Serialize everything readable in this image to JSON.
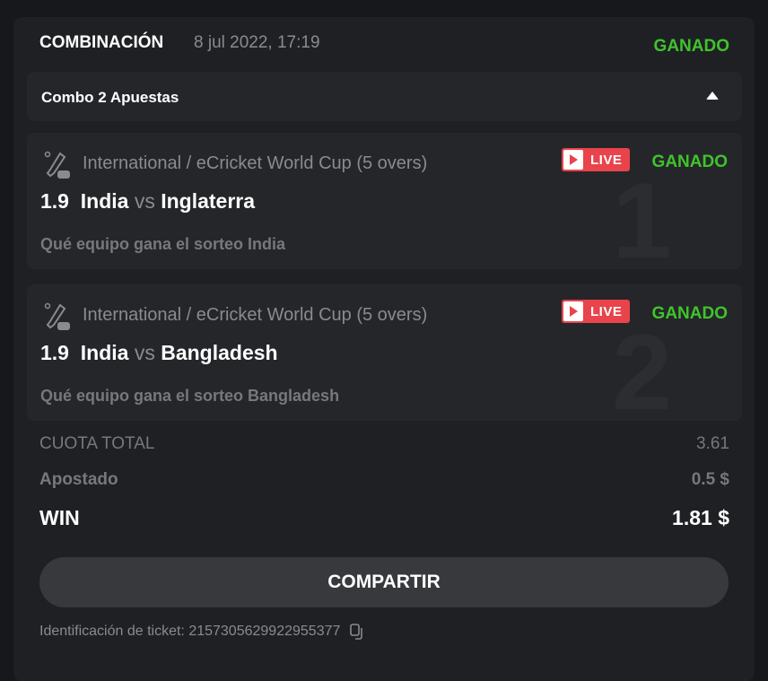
{
  "header": {
    "title": "COMBINACIÓN",
    "date": "8 jul 2022, 17:19",
    "status": "GANADO"
  },
  "combo": {
    "label": "Combo 2 Apuestas",
    "toggle_icon": "caret-up-icon"
  },
  "bets": [
    {
      "league": "International / eCricket World Cup (5 overs)",
      "live": "LIVE",
      "status": "GANADO",
      "odds": "1.9",
      "home": "India",
      "vs": "vs",
      "away": "Inglaterra",
      "selection": "Qué equipo gana el sorteo India",
      "index": "1"
    },
    {
      "league": "International / eCricket World Cup (5 overs)",
      "live": "LIVE",
      "status": "GANADO",
      "odds": "1.9",
      "home": "India",
      "vs": "vs",
      "away": "Bangladesh",
      "selection": "Qué equipo gana el sorteo Bangladesh",
      "index": "2"
    }
  ],
  "summary": {
    "total_odds_label": "CUOTA TOTAL",
    "total_odds": "3.61",
    "stake_label": "Apostado",
    "stake": "0.5 $",
    "win_label": "WIN",
    "win": "1.81 $"
  },
  "share_label": "COMPARTIR",
  "ticket": {
    "label": "Identificación de ticket: 2157305629922955377",
    "copy_icon": "copy-icon"
  },
  "colors": {
    "accent_green": "#3fc42c",
    "live_red": "#e9434b"
  }
}
